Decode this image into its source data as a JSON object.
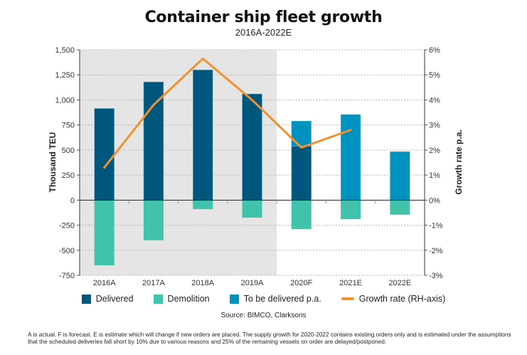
{
  "chart_data": {
    "type": "bar",
    "title": "Container ship fleet growth",
    "subtitle": "2016A-2022E",
    "categories": [
      "2016A",
      "2017A",
      "2018A",
      "2019A",
      "2020F",
      "2021E",
      "2022E"
    ],
    "series": [
      {
        "name": "Delivered",
        "type": "bar",
        "axis": "left",
        "color": "#00577d",
        "values": [
          915,
          1180,
          1300,
          1060,
          540,
          null,
          null
        ]
      },
      {
        "name": "To be delivered p.a.",
        "type": "bar",
        "axis": "left",
        "color": "#0092bf",
        "values": [
          null,
          null,
          null,
          null,
          250,
          855,
          485
        ]
      },
      {
        "name": "Demolition",
        "type": "bar",
        "axis": "left",
        "color": "#41c2aa",
        "values": [
          -650,
          -400,
          -90,
          -175,
          -290,
          -190,
          -145
        ]
      },
      {
        "name": "Growth rate (RH-axis)",
        "type": "line",
        "axis": "right",
        "color": "#f39130",
        "values": [
          1.3,
          3.8,
          5.65,
          4.0,
          2.1,
          2.8,
          null
        ]
      }
    ],
    "stacked": true,
    "xlabel": "",
    "ylabel": "Thousand TEU",
    "ylabel_right": "Growth rate p.a.",
    "ylim": [
      -750,
      1500
    ],
    "ylim_right": [
      -3,
      6
    ],
    "yticks": [
      -750,
      -500,
      -250,
      0,
      250,
      500,
      750,
      1000,
      1250,
      1500
    ],
    "ytick_labels": [
      "-750",
      "-500",
      "-250",
      "0",
      "250",
      "500",
      "750",
      "1,000",
      "1,250",
      "1,500"
    ],
    "yticks_right": [
      -3,
      -2,
      -1,
      0,
      1,
      2,
      3,
      4,
      5,
      6
    ],
    "ytick_labels_right": [
      "-3%",
      "-2%",
      "-1%",
      "0%",
      "1%",
      "2%",
      "3%",
      "4%",
      "5%",
      "6%"
    ],
    "grid": true,
    "shaded_region": {
      "from": "2016A",
      "to": "2019A",
      "color": "#e5e5e5",
      "meaning": "actual"
    },
    "legend_position": "bottom",
    "legend": [
      "Delivered",
      "Demolition",
      "To be delivered p.a.",
      "Growth rate (RH-axis)"
    ],
    "source": "Source: BIMCO, Clarksons"
  },
  "legend": {
    "delivered": "Delivered",
    "demolition": "Demolition",
    "to_be_delivered": "To be delivered p.a.",
    "growth_rate": "Growth rate (RH-axis)"
  },
  "colors": {
    "delivered": "#00577d",
    "demolition": "#41c2aa",
    "to_be_delivered": "#0092bf",
    "growth_rate": "#f39130",
    "shade": "#e5e5e5"
  },
  "footnote": "A is actual. F is forecast. E is estimate which will change if new orders are placed. The supply growth for 2020-2022 contains existing orders only and is estimated under the assumptions that the scheduled deliveries fall short by 10% due to various reasons and 25% of the remaining vessels on order are delayed/postponed."
}
